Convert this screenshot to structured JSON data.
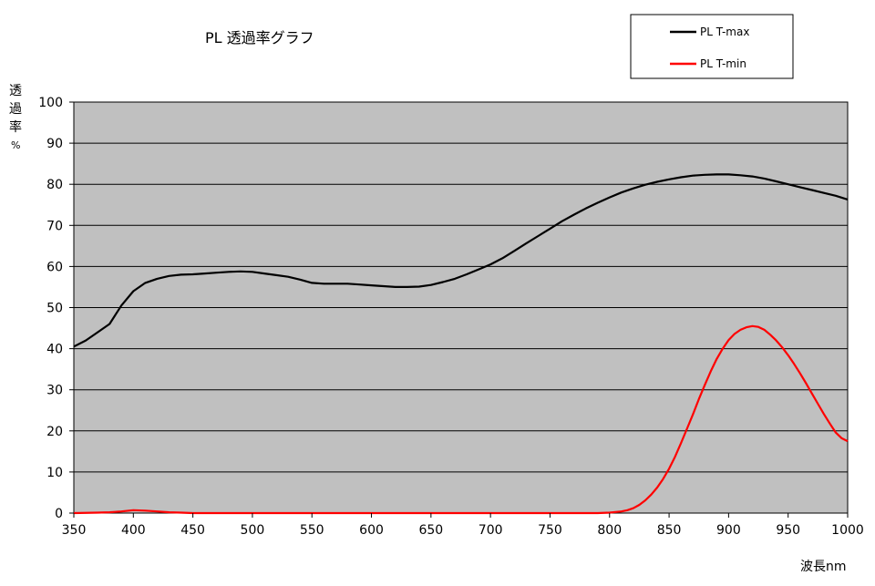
{
  "chart_data": {
    "type": "line",
    "title": "PL 透過率グラフ",
    "xlabel": "波長nm",
    "ylabel": [
      "透",
      "過",
      "率",
      "%"
    ],
    "xlim": [
      350,
      1000
    ],
    "ylim": [
      0,
      100
    ],
    "x_ticks": [
      "350",
      "400",
      "450",
      "500",
      "550",
      "600",
      "650",
      "700",
      "750",
      "800",
      "850",
      "900",
      "950",
      "1000"
    ],
    "y_ticks": [
      "0",
      "10",
      "20",
      "30",
      "40",
      "50",
      "60",
      "70",
      "80",
      "90",
      "100"
    ],
    "grid": "horizontal",
    "legend_position": "top-right",
    "plot_background": "#c0c0c0",
    "series": [
      {
        "name": "PL T-max",
        "color": "#000000",
        "x": [
          350,
          360,
          370,
          380,
          390,
          400,
          410,
          420,
          430,
          440,
          450,
          460,
          470,
          480,
          490,
          500,
          510,
          520,
          530,
          540,
          550,
          560,
          570,
          580,
          590,
          600,
          610,
          620,
          630,
          640,
          650,
          660,
          670,
          680,
          690,
          700,
          710,
          720,
          730,
          740,
          750,
          760,
          770,
          780,
          790,
          800,
          810,
          820,
          830,
          840,
          850,
          860,
          870,
          880,
          890,
          900,
          910,
          920,
          930,
          940,
          950,
          960,
          970,
          980,
          990,
          1000
        ],
        "y": [
          40.5,
          42,
          44,
          46,
          50.5,
          54,
          56,
          57,
          57.7,
          58,
          58.1,
          58.3,
          58.5,
          58.7,
          58.8,
          58.7,
          58.3,
          57.9,
          57.5,
          56.8,
          56,
          55.8,
          55.8,
          55.8,
          55.6,
          55.4,
          55.2,
          55.0,
          55.0,
          55.1,
          55.5,
          56.2,
          57.0,
          58.1,
          59.3,
          60.5,
          62,
          63.8,
          65.6,
          67.4,
          69.2,
          71,
          72.6,
          74.1,
          75.5,
          76.8,
          78,
          79,
          79.9,
          80.6,
          81.2,
          81.7,
          82.1,
          82.3,
          82.4,
          82.4,
          82.2,
          81.9,
          81.4,
          80.7,
          80,
          79.3,
          78.6,
          77.9,
          77.2,
          76.3
        ]
      },
      {
        "name": "PL T-min",
        "color": "#ff0000",
        "x": [
          350,
          370,
          380,
          390,
          400,
          410,
          420,
          430,
          440,
          450,
          500,
          550,
          600,
          650,
          700,
          750,
          780,
          790,
          800,
          810,
          815,
          820,
          825,
          830,
          835,
          840,
          845,
          850,
          855,
          860,
          865,
          870,
          875,
          880,
          885,
          890,
          895,
          900,
          905,
          910,
          915,
          920,
          925,
          930,
          935,
          940,
          945,
          950,
          955,
          960,
          965,
          970,
          975,
          980,
          985,
          990,
          995,
          1000
        ],
        "y": [
          0,
          0.1,
          0.2,
          0.4,
          0.7,
          0.6,
          0.4,
          0.2,
          0.1,
          0,
          0,
          0,
          0,
          0,
          0,
          0,
          0,
          0,
          0.1,
          0.4,
          0.7,
          1.2,
          2.0,
          3.1,
          4.5,
          6.2,
          8.3,
          10.8,
          13.7,
          17.0,
          20.5,
          24.0,
          27.7,
          31.2,
          34.5,
          37.5,
          40.0,
          42.1,
          43.6,
          44.6,
          45.2,
          45.5,
          45.3,
          44.6,
          43.4,
          42.0,
          40.3,
          38.4,
          36.3,
          34.0,
          31.6,
          29.1,
          26.6,
          24.1,
          21.8,
          19.6,
          18.2,
          17.5
        ]
      }
    ]
  }
}
